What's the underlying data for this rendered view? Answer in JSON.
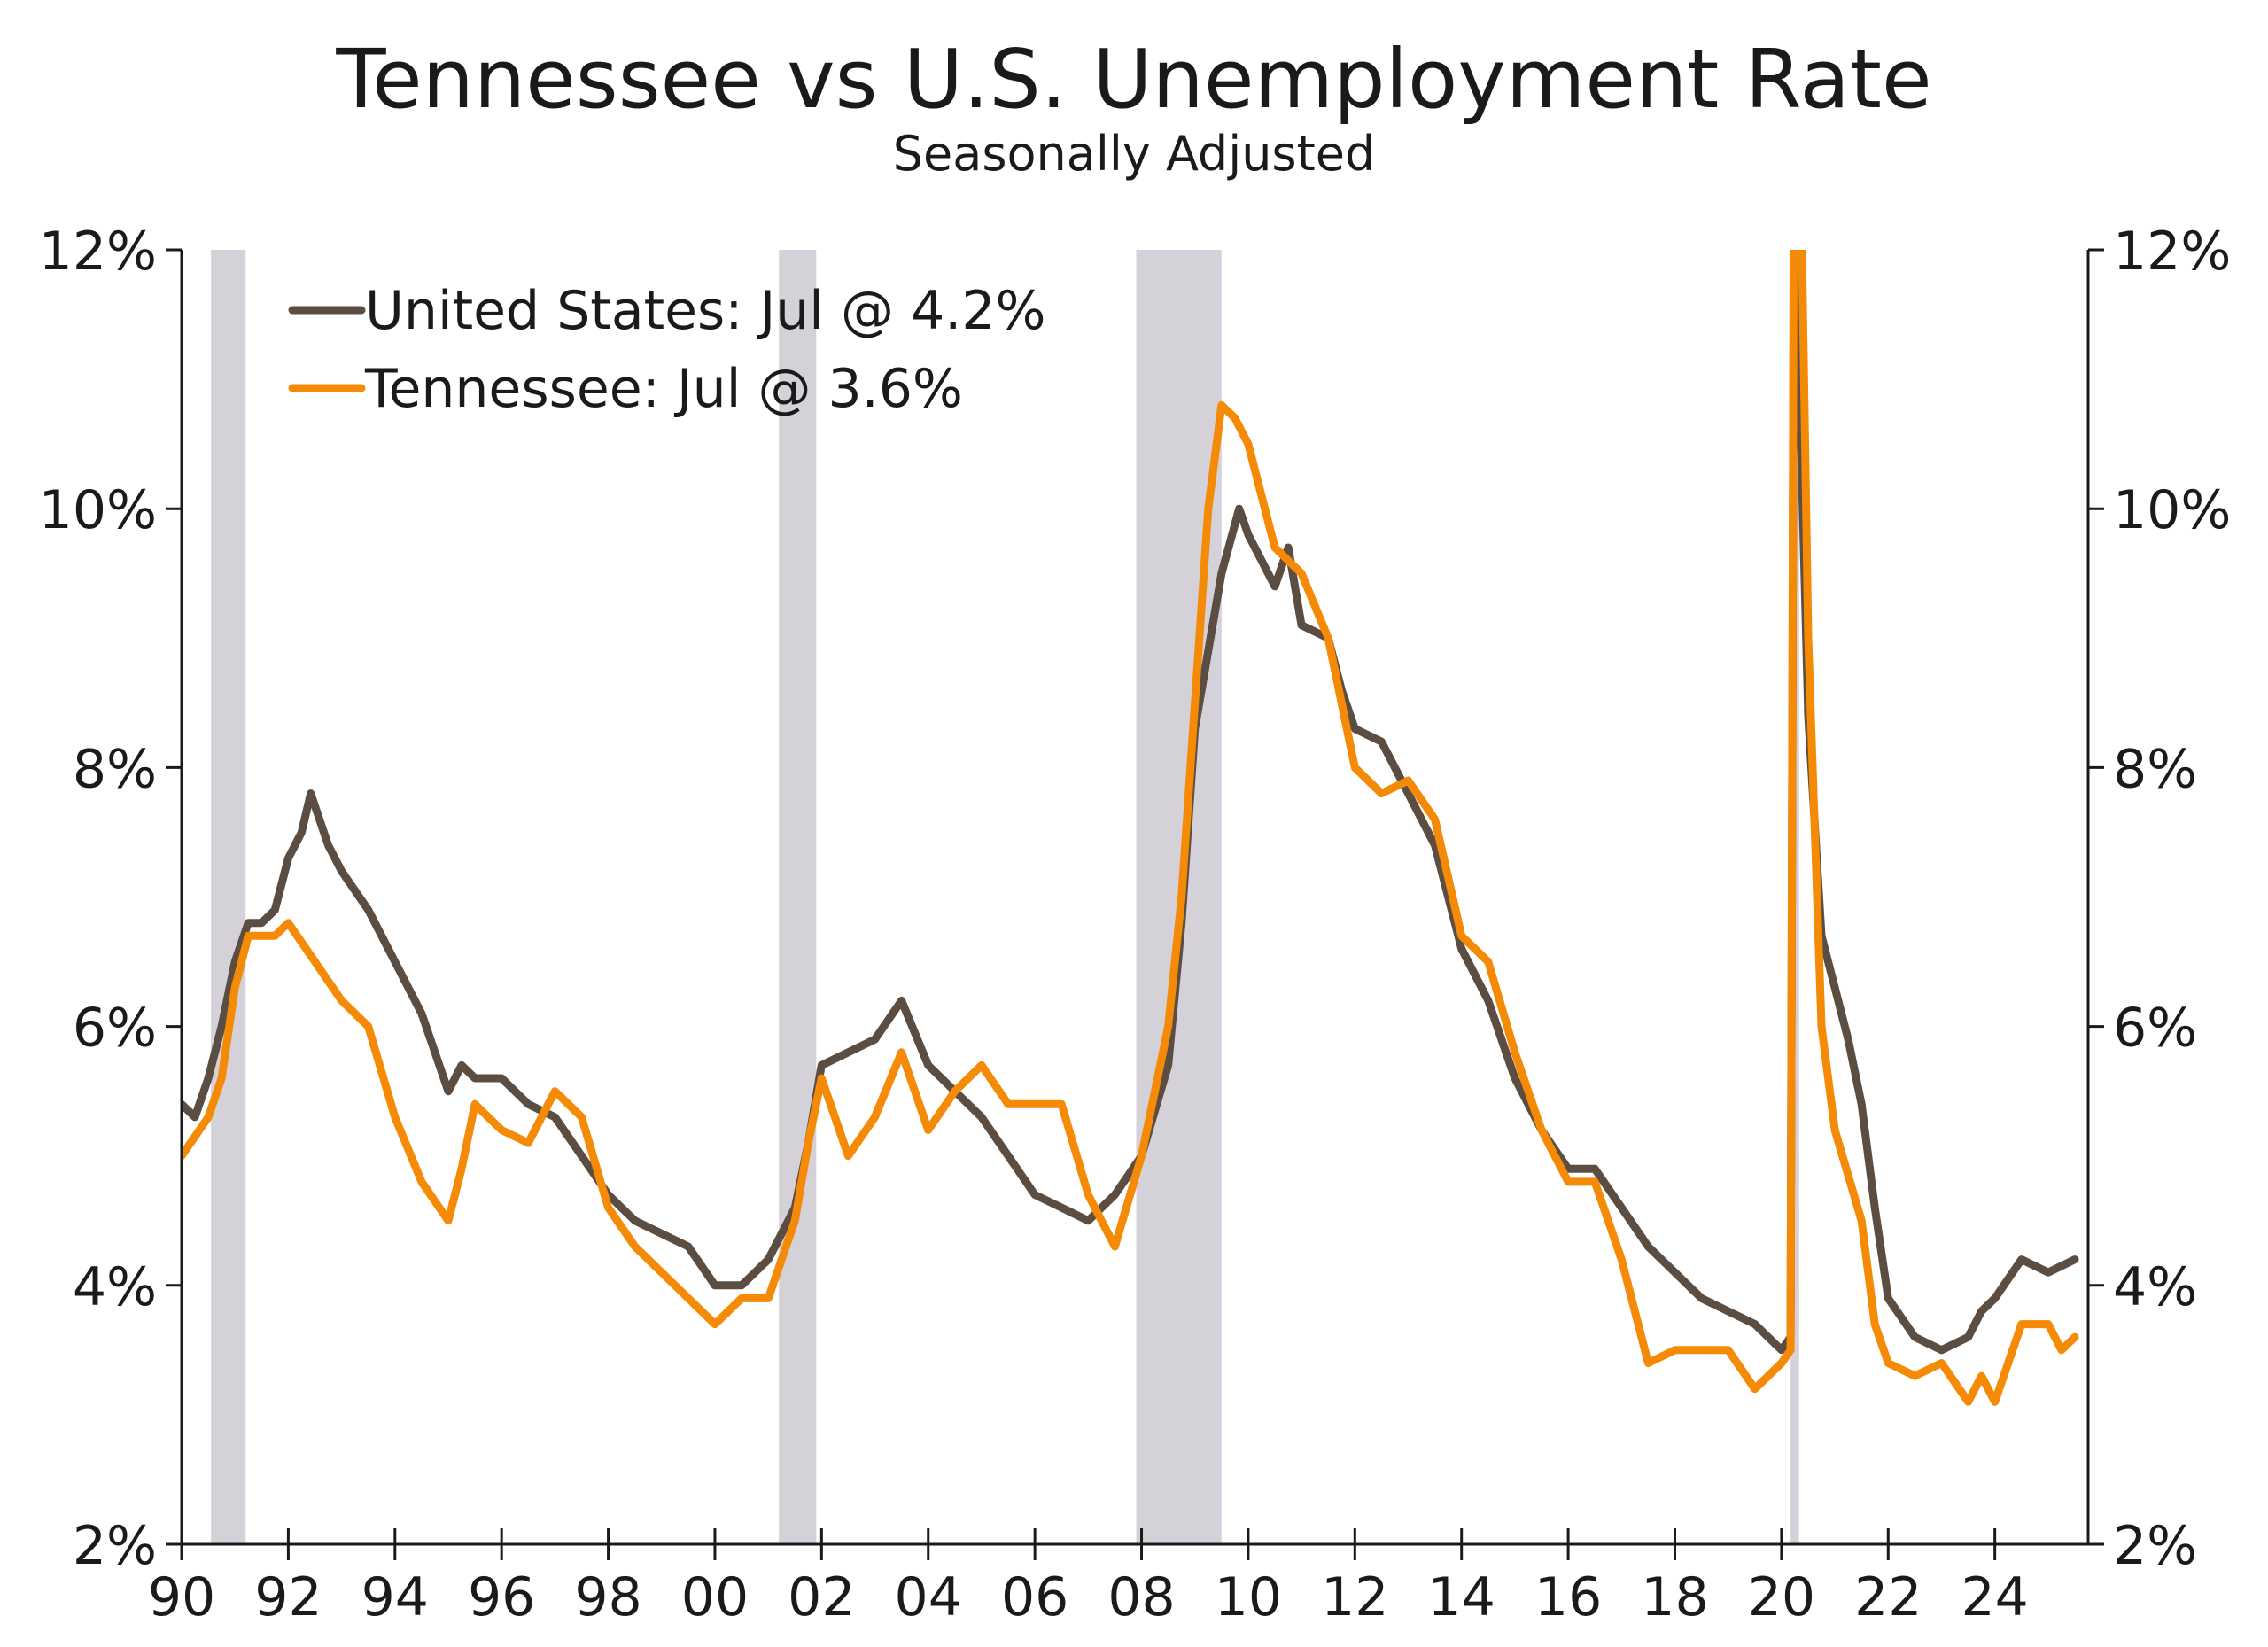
{
  "chart_data": {
    "type": "line",
    "title": "Tennessee vs U.S. Unemployment Rate",
    "subtitle": "Seasonally Adjusted",
    "xlim": [
      1990,
      2025.75
    ],
    "ylim": [
      2,
      12
    ],
    "x_tick_values": [
      1990,
      1992,
      1994,
      1996,
      1998,
      2000,
      2002,
      2004,
      2006,
      2008,
      2010,
      2012,
      2014,
      2016,
      2018,
      2020,
      2022,
      2024
    ],
    "x_tick_labels": [
      "90",
      "92",
      "94",
      "96",
      "98",
      "00",
      "02",
      "04",
      "06",
      "08",
      "10",
      "12",
      "14",
      "16",
      "18",
      "20",
      "22",
      "24"
    ],
    "y_tick_values": [
      2,
      4,
      6,
      8,
      10,
      12
    ],
    "y_tick_labels": [
      "2%",
      "4%",
      "6%",
      "8%",
      "10%",
      "12%"
    ],
    "grid": false,
    "dual_y_axis": true,
    "legend_position": "top-left",
    "recessions": [
      [
        1990.55,
        1991.2
      ],
      [
        2001.2,
        2001.9
      ],
      [
        2007.9,
        2009.5
      ],
      [
        2020.17,
        2020.33
      ]
    ],
    "recession_color": "#d5d1d9",
    "series": [
      {
        "name": "United States: Jul @ 4.2%",
        "color": "#5b4d42",
        "points": [
          [
            1990.0,
            5.4
          ],
          [
            1990.25,
            5.3
          ],
          [
            1990.5,
            5.6
          ],
          [
            1990.75,
            6.0
          ],
          [
            1991.0,
            6.5
          ],
          [
            1991.25,
            6.8
          ],
          [
            1991.5,
            6.8
          ],
          [
            1991.75,
            6.9
          ],
          [
            1992.0,
            7.3
          ],
          [
            1992.25,
            7.5
          ],
          [
            1992.42,
            7.8
          ],
          [
            1992.75,
            7.4
          ],
          [
            1993.0,
            7.2
          ],
          [
            1993.5,
            6.9
          ],
          [
            1994.0,
            6.5
          ],
          [
            1994.5,
            6.1
          ],
          [
            1995.0,
            5.5
          ],
          [
            1995.25,
            5.7
          ],
          [
            1995.5,
            5.6
          ],
          [
            1996.0,
            5.6
          ],
          [
            1996.5,
            5.4
          ],
          [
            1997.0,
            5.3
          ],
          [
            1997.5,
            5.0
          ],
          [
            1998.0,
            4.7
          ],
          [
            1998.5,
            4.5
          ],
          [
            1999.0,
            4.4
          ],
          [
            1999.5,
            4.3
          ],
          [
            2000.0,
            4.0
          ],
          [
            2000.5,
            4.0
          ],
          [
            2001.0,
            4.2
          ],
          [
            2001.5,
            4.6
          ],
          [
            2001.75,
            5.1
          ],
          [
            2002.0,
            5.7
          ],
          [
            2002.5,
            5.8
          ],
          [
            2003.0,
            5.9
          ],
          [
            2003.5,
            6.2
          ],
          [
            2004.0,
            5.7
          ],
          [
            2004.5,
            5.5
          ],
          [
            2005.0,
            5.3
          ],
          [
            2005.5,
            5.0
          ],
          [
            2006.0,
            4.7
          ],
          [
            2006.5,
            4.6
          ],
          [
            2007.0,
            4.5
          ],
          [
            2007.5,
            4.7
          ],
          [
            2008.0,
            5.0
          ],
          [
            2008.5,
            5.7
          ],
          [
            2008.75,
            6.8
          ],
          [
            2009.0,
            8.3
          ],
          [
            2009.5,
            9.5
          ],
          [
            2009.83,
            10.0
          ],
          [
            2010.0,
            9.8
          ],
          [
            2010.5,
            9.4
          ],
          [
            2010.75,
            9.7
          ],
          [
            2011.0,
            9.1
          ],
          [
            2011.5,
            9.0
          ],
          [
            2011.75,
            8.6
          ],
          [
            2012.0,
            8.3
          ],
          [
            2012.5,
            8.2
          ],
          [
            2013.0,
            7.8
          ],
          [
            2013.5,
            7.4
          ],
          [
            2014.0,
            6.6
          ],
          [
            2014.5,
            6.2
          ],
          [
            2015.0,
            5.6
          ],
          [
            2015.5,
            5.2
          ],
          [
            2016.0,
            4.9
          ],
          [
            2016.5,
            4.9
          ],
          [
            2017.0,
            4.6
          ],
          [
            2017.5,
            4.3
          ],
          [
            2018.0,
            4.1
          ],
          [
            2018.5,
            3.9
          ],
          [
            2019.0,
            3.8
          ],
          [
            2019.5,
            3.7
          ],
          [
            2020.0,
            3.5
          ],
          [
            2020.17,
            3.6
          ],
          [
            2020.25,
            14.7
          ],
          [
            2020.33,
            11.1
          ],
          [
            2020.5,
            8.4
          ],
          [
            2020.75,
            6.7
          ],
          [
            2021.0,
            6.3
          ],
          [
            2021.25,
            5.9
          ],
          [
            2021.5,
            5.4
          ],
          [
            2021.75,
            4.6
          ],
          [
            2022.0,
            3.9
          ],
          [
            2022.5,
            3.6
          ],
          [
            2023.0,
            3.5
          ],
          [
            2023.5,
            3.6
          ],
          [
            2023.75,
            3.8
          ],
          [
            2024.0,
            3.9
          ],
          [
            2024.5,
            4.2
          ],
          [
            2025.0,
            4.1
          ],
          [
            2025.5,
            4.2
          ]
        ]
      },
      {
        "name": "Tennessee: Jul @ 3.6%",
        "color": "#f58a07",
        "points": [
          [
            1990.0,
            5.0
          ],
          [
            1990.5,
            5.3
          ],
          [
            1990.75,
            5.6
          ],
          [
            1991.0,
            6.3
          ],
          [
            1991.25,
            6.7
          ],
          [
            1991.75,
            6.7
          ],
          [
            1992.0,
            6.8
          ],
          [
            1992.5,
            6.5
          ],
          [
            1993.0,
            6.2
          ],
          [
            1993.5,
            6.0
          ],
          [
            1994.0,
            5.3
          ],
          [
            1994.5,
            4.8
          ],
          [
            1995.0,
            4.5
          ],
          [
            1995.25,
            4.9
          ],
          [
            1995.5,
            5.4
          ],
          [
            1996.0,
            5.2
          ],
          [
            1996.5,
            5.1
          ],
          [
            1997.0,
            5.5
          ],
          [
            1997.5,
            5.3
          ],
          [
            1998.0,
            4.6
          ],
          [
            1998.5,
            4.3
          ],
          [
            1999.0,
            4.1
          ],
          [
            1999.5,
            3.9
          ],
          [
            2000.0,
            3.7
          ],
          [
            2000.5,
            3.9
          ],
          [
            2001.0,
            3.9
          ],
          [
            2001.5,
            4.5
          ],
          [
            2001.75,
            5.1
          ],
          [
            2002.0,
            5.6
          ],
          [
            2002.5,
            5.0
          ],
          [
            2003.0,
            5.3
          ],
          [
            2003.5,
            5.8
          ],
          [
            2004.0,
            5.2
          ],
          [
            2004.5,
            5.5
          ],
          [
            2005.0,
            5.7
          ],
          [
            2005.5,
            5.4
          ],
          [
            2006.0,
            5.4
          ],
          [
            2006.5,
            5.4
          ],
          [
            2007.0,
            4.7
          ],
          [
            2007.5,
            4.3
          ],
          [
            2008.0,
            5.0
          ],
          [
            2008.5,
            6.0
          ],
          [
            2008.75,
            7.0
          ],
          [
            2009.0,
            8.5
          ],
          [
            2009.25,
            10.0
          ],
          [
            2009.5,
            10.8
          ],
          [
            2009.75,
            10.7
          ],
          [
            2010.0,
            10.5
          ],
          [
            2010.5,
            9.7
          ],
          [
            2011.0,
            9.5
          ],
          [
            2011.5,
            9.0
          ],
          [
            2012.0,
            8.0
          ],
          [
            2012.5,
            7.8
          ],
          [
            2013.0,
            7.9
          ],
          [
            2013.5,
            7.6
          ],
          [
            2014.0,
            6.7
          ],
          [
            2014.5,
            6.5
          ],
          [
            2015.0,
            5.8
          ],
          [
            2015.5,
            5.2
          ],
          [
            2016.0,
            4.8
          ],
          [
            2016.5,
            4.8
          ],
          [
            2017.0,
            4.2
          ],
          [
            2017.5,
            3.4
          ],
          [
            2018.0,
            3.5
          ],
          [
            2018.5,
            3.5
          ],
          [
            2019.0,
            3.5
          ],
          [
            2019.5,
            3.2
          ],
          [
            2020.0,
            3.4
          ],
          [
            2020.17,
            3.5
          ],
          [
            2020.25,
            15.5
          ],
          [
            2020.5,
            9.0
          ],
          [
            2020.75,
            6.0
          ],
          [
            2021.0,
            5.2
          ],
          [
            2021.5,
            4.5
          ],
          [
            2021.75,
            3.7
          ],
          [
            2022.0,
            3.4
          ],
          [
            2022.5,
            3.3
          ],
          [
            2023.0,
            3.4
          ],
          [
            2023.5,
            3.1
          ],
          [
            2023.75,
            3.3
          ],
          [
            2024.0,
            3.1
          ],
          [
            2024.5,
            3.7
          ],
          [
            2025.0,
            3.7
          ],
          [
            2025.25,
            3.5
          ],
          [
            2025.5,
            3.6
          ]
        ]
      }
    ]
  }
}
